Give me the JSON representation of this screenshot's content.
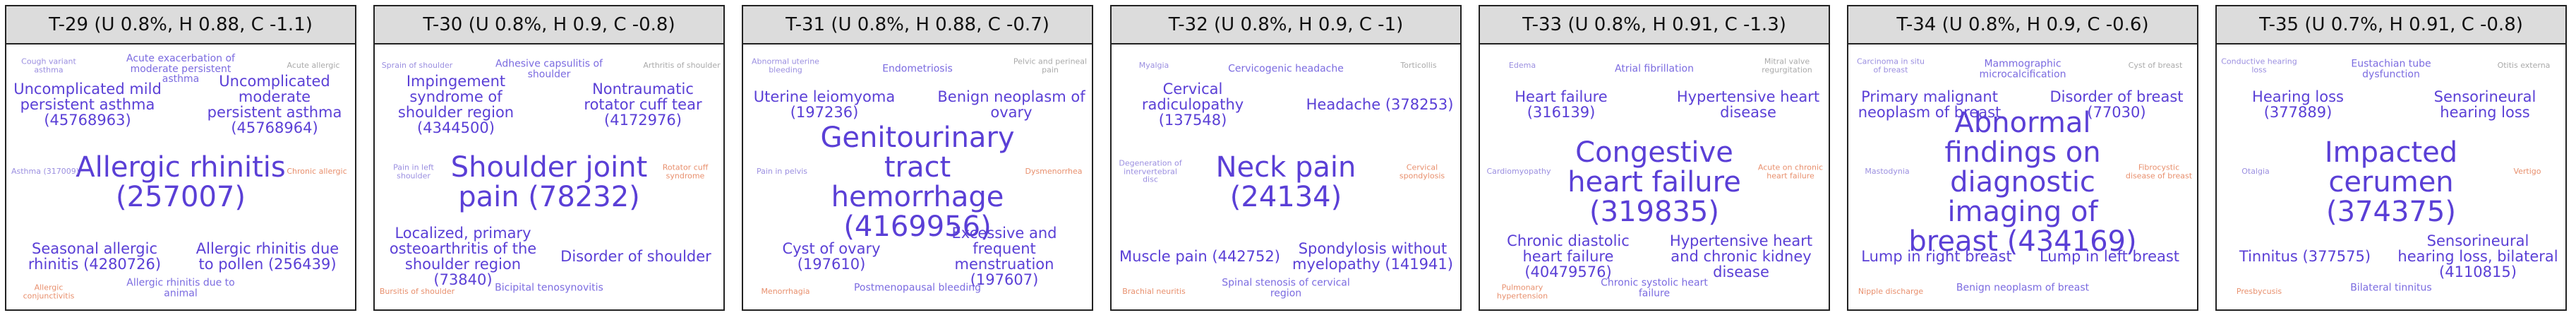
{
  "panels": [
    {
      "title": "T-29 (U 0.8%, H 0.88, C -1.1)",
      "words": [
        {
          "text": "Allergic rhinitis (257007)",
          "color": "#5a3fd6"
        },
        {
          "text": "Uncomplicated mild persistent asthma (45768963)",
          "color": "#5a3fd6"
        },
        {
          "text": "Uncomplicated moderate persistent asthma (45768964)",
          "color": "#5a3fd6"
        },
        {
          "text": "Seasonal allergic rhinitis (4280726)",
          "color": "#5a3fd6"
        },
        {
          "text": "Allergic rhinitis due to pollen (256439)",
          "color": "#5a3fd6"
        },
        {
          "text": "Acute exacerbation of moderate persistent asthma",
          "color": "#7b6be0"
        },
        {
          "text": "Allergic rhinitis due to animal",
          "color": "#7b6be0"
        },
        {
          "text": "Asthma (317009)",
          "color": "#9b8fe0"
        },
        {
          "text": "Chronic allergic",
          "color": "#e8906e"
        },
        {
          "text": "Cough variant asthma",
          "color": "#9b8fe0"
        },
        {
          "text": "Acute allergic",
          "color": "#aaaaaa"
        },
        {
          "text": "Allergic conjunctivitis",
          "color": "#e8906e"
        }
      ]
    },
    {
      "title": "T-30 (U 0.8%, H 0.9, C -0.8)",
      "words": [
        {
          "text": "Shoulder joint pain (78232)",
          "color": "#5a3fd6"
        },
        {
          "text": "Impingement syndrome of shoulder region (4344500)",
          "color": "#5a3fd6"
        },
        {
          "text": "Nontraumatic rotator cuff tear (4172976)",
          "color": "#5a3fd6"
        },
        {
          "text": "Localized, primary osteoarthritis of the shoulder region (73840)",
          "color": "#5a3fd6"
        },
        {
          "text": "Disorder of shoulder",
          "color": "#5a3fd6"
        },
        {
          "text": "Adhesive capsulitis of shoulder",
          "color": "#7b6be0"
        },
        {
          "text": "Bicipital tenosynovitis",
          "color": "#7b6be0"
        },
        {
          "text": "Pain in left shoulder",
          "color": "#9b8fe0"
        },
        {
          "text": "Rotator cuff syndrome",
          "color": "#e8906e"
        },
        {
          "text": "Sprain of shoulder",
          "color": "#9b8fe0"
        },
        {
          "text": "Arthritis of shoulder",
          "color": "#aaaaaa"
        },
        {
          "text": "Bursitis of shoulder",
          "color": "#e8906e"
        }
      ]
    },
    {
      "title": "T-31 (U 0.8%, H 0.88, C -0.7)",
      "words": [
        {
          "text": "Genitourinary tract hemorrhage (4169956)",
          "color": "#5a3fd6"
        },
        {
          "text": "Uterine leiomyoma (197236)",
          "color": "#5a3fd6"
        },
        {
          "text": "Benign neoplasm of ovary",
          "color": "#5a3fd6"
        },
        {
          "text": "Cyst of ovary (197610)",
          "color": "#5a3fd6"
        },
        {
          "text": "Excessive and frequent menstruation (197607)",
          "color": "#5a3fd6"
        },
        {
          "text": "Endometriosis",
          "color": "#7b6be0"
        },
        {
          "text": "Postmenopausal bleeding",
          "color": "#7b6be0"
        },
        {
          "text": "Pain in pelvis",
          "color": "#9b8fe0"
        },
        {
          "text": "Dysmenorrhea",
          "color": "#e8906e"
        },
        {
          "text": "Abnormal uterine bleeding",
          "color": "#9b8fe0"
        },
        {
          "text": "Pelvic and perineal pain",
          "color": "#aaaaaa"
        },
        {
          "text": "Menorrhagia",
          "color": "#e8906e"
        }
      ]
    },
    {
      "title": "T-32 (U 0.8%, H 0.9, C -1)",
      "words": [
        {
          "text": "Neck pain (24134)",
          "color": "#5a3fd6"
        },
        {
          "text": "Cervical radiculopathy (137548)",
          "color": "#5a3fd6"
        },
        {
          "text": "Headache (378253)",
          "color": "#5a3fd6"
        },
        {
          "text": "Muscle pain (442752)",
          "color": "#5a3fd6"
        },
        {
          "text": "Spondylosis without myelopathy (141941)",
          "color": "#5a3fd6"
        },
        {
          "text": "Cervicogenic headache",
          "color": "#7b6be0"
        },
        {
          "text": "Spinal stenosis of cervical region",
          "color": "#7b6be0"
        },
        {
          "text": "Degeneration of intervertebral disc",
          "color": "#9b8fe0"
        },
        {
          "text": "Cervical spondylosis",
          "color": "#e8906e"
        },
        {
          "text": "Myalgia",
          "color": "#9b8fe0"
        },
        {
          "text": "Torticollis",
          "color": "#aaaaaa"
        },
        {
          "text": "Brachial neuritis",
          "color": "#e8906e"
        }
      ]
    },
    {
      "title": "T-33 (U 0.8%, H 0.91, C -1.3)",
      "words": [
        {
          "text": "Congestive heart failure (319835)",
          "color": "#5a3fd6"
        },
        {
          "text": "Heart failure (316139)",
          "color": "#5a3fd6"
        },
        {
          "text": "Hypertensive heart disease",
          "color": "#5a3fd6"
        },
        {
          "text": "Chronic diastolic heart failure (40479576)",
          "color": "#5a3fd6"
        },
        {
          "text": "Hypertensive heart and chronic kidney disease",
          "color": "#5a3fd6"
        },
        {
          "text": "Atrial fibrillation",
          "color": "#7b6be0"
        },
        {
          "text": "Chronic systolic heart failure",
          "color": "#7b6be0"
        },
        {
          "text": "Cardiomyopathy",
          "color": "#9b8fe0"
        },
        {
          "text": "Acute on chronic heart failure",
          "color": "#e8906e"
        },
        {
          "text": "Edema",
          "color": "#9b8fe0"
        },
        {
          "text": "Mitral valve regurgitation",
          "color": "#aaaaaa"
        },
        {
          "text": "Pulmonary hypertension",
          "color": "#e8906e"
        }
      ]
    },
    {
      "title": "T-34 (U 0.8%, H 0.9, C -0.6)",
      "words": [
        {
          "text": "Abnormal findings on diagnostic imaging of breast (434169)",
          "color": "#5a3fd6"
        },
        {
          "text": "Primary malignant neoplasm of breast",
          "color": "#5a3fd6"
        },
        {
          "text": "Disorder of breast (77030)",
          "color": "#5a3fd6"
        },
        {
          "text": "Lump in right breast",
          "color": "#5a3fd6"
        },
        {
          "text": "Lump in left breast",
          "color": "#5a3fd6"
        },
        {
          "text": "Mammographic microcalcification",
          "color": "#7b6be0"
        },
        {
          "text": "Benign neoplasm of breast",
          "color": "#7b6be0"
        },
        {
          "text": "Mastodynia",
          "color": "#9b8fe0"
        },
        {
          "text": "Fibrocystic disease of breast",
          "color": "#e8906e"
        },
        {
          "text": "Carcinoma in situ of breast",
          "color": "#9b8fe0"
        },
        {
          "text": "Cyst of breast",
          "color": "#aaaaaa"
        },
        {
          "text": "Nipple discharge",
          "color": "#e8906e"
        }
      ]
    },
    {
      "title": "T-35 (U 0.7%, H 0.91, C -0.8)",
      "words": [
        {
          "text": "Impacted cerumen (374375)",
          "color": "#5a3fd6"
        },
        {
          "text": "Hearing loss (377889)",
          "color": "#5a3fd6"
        },
        {
          "text": "Sensorineural hearing loss",
          "color": "#5a3fd6"
        },
        {
          "text": "Tinnitus (377575)",
          "color": "#5a3fd6"
        },
        {
          "text": "Sensorineural hearing loss, bilateral (4110815)",
          "color": "#5a3fd6"
        },
        {
          "text": "Eustachian tube dysfunction",
          "color": "#7b6be0"
        },
        {
          "text": "Bilateral tinnitus",
          "color": "#7b6be0"
        },
        {
          "text": "Otalgia",
          "color": "#9b8fe0"
        },
        {
          "text": "Vertigo",
          "color": "#e8906e"
        },
        {
          "text": "Conductive hearing loss",
          "color": "#9b8fe0"
        },
        {
          "text": "Otitis externa",
          "color": "#aaaaaa"
        },
        {
          "text": "Presbycusis",
          "color": "#e8906e"
        }
      ]
    }
  ]
}
